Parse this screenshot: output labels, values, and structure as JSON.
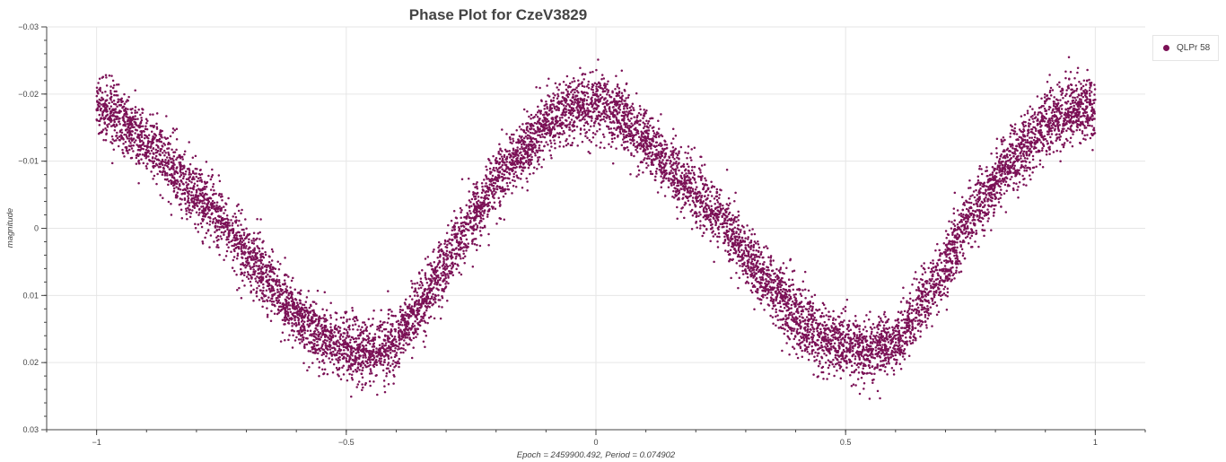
{
  "chart_data": {
    "type": "scatter",
    "title": "Phase Plot for CzeV3829",
    "xlabel": "Epoch = 2459900.492, Period = 0.074902",
    "ylabel": "magnitude",
    "xlim": [
      -1.1,
      1.1
    ],
    "ylim": [
      -0.03,
      0.03
    ],
    "y_inverted": true,
    "x_ticks": [
      -1,
      -0.5,
      0,
      0.5,
      1
    ],
    "x_tick_labels": [
      "−1",
      "−0.5",
      "0",
      "0.5",
      "1"
    ],
    "y_ticks": [
      -0.03,
      -0.02,
      -0.01,
      0,
      0.01,
      0.02,
      0.03
    ],
    "y_tick_labels": [
      "−0.03",
      "−0.02",
      "−0.01",
      "0",
      "0.01",
      "0.02",
      "0.03"
    ],
    "grid": true,
    "legend_position": "top-right, outside plot",
    "series": [
      {
        "name": "QLPr 58",
        "color": "#7b1156",
        "marker": "circle",
        "x": [
          -1.0,
          -0.95,
          -0.9,
          -0.85,
          -0.8,
          -0.75,
          -0.7,
          -0.65,
          -0.6,
          -0.55,
          -0.5,
          -0.45,
          -0.4,
          -0.35,
          -0.3,
          -0.25,
          -0.2,
          -0.15,
          -0.1,
          -0.05,
          0.0,
          0.05,
          0.1,
          0.15,
          0.2,
          0.25,
          0.3,
          0.35,
          0.4,
          0.45,
          0.5,
          0.55,
          0.6,
          0.65,
          0.7,
          0.75,
          0.8,
          0.85,
          0.9,
          0.95,
          1.0
        ],
        "y": [
          -0.0185,
          -0.0165,
          -0.0128,
          -0.009,
          -0.005,
          -0.0012,
          0.0038,
          0.0083,
          0.0128,
          0.0163,
          0.0178,
          0.0182,
          0.017,
          0.0113,
          0.0053,
          -0.0015,
          -0.0068,
          -0.0115,
          -0.0155,
          -0.0178,
          -0.0185,
          -0.0165,
          -0.0128,
          -0.009,
          -0.005,
          -0.0012,
          0.0038,
          0.0083,
          0.0128,
          0.0163,
          0.0178,
          0.0182,
          0.017,
          0.0113,
          0.0053,
          -0.0015,
          -0.0068,
          -0.0115,
          -0.0155,
          -0.0178,
          -0.0185
        ],
        "scatter_std": 0.0024
      }
    ]
  }
}
